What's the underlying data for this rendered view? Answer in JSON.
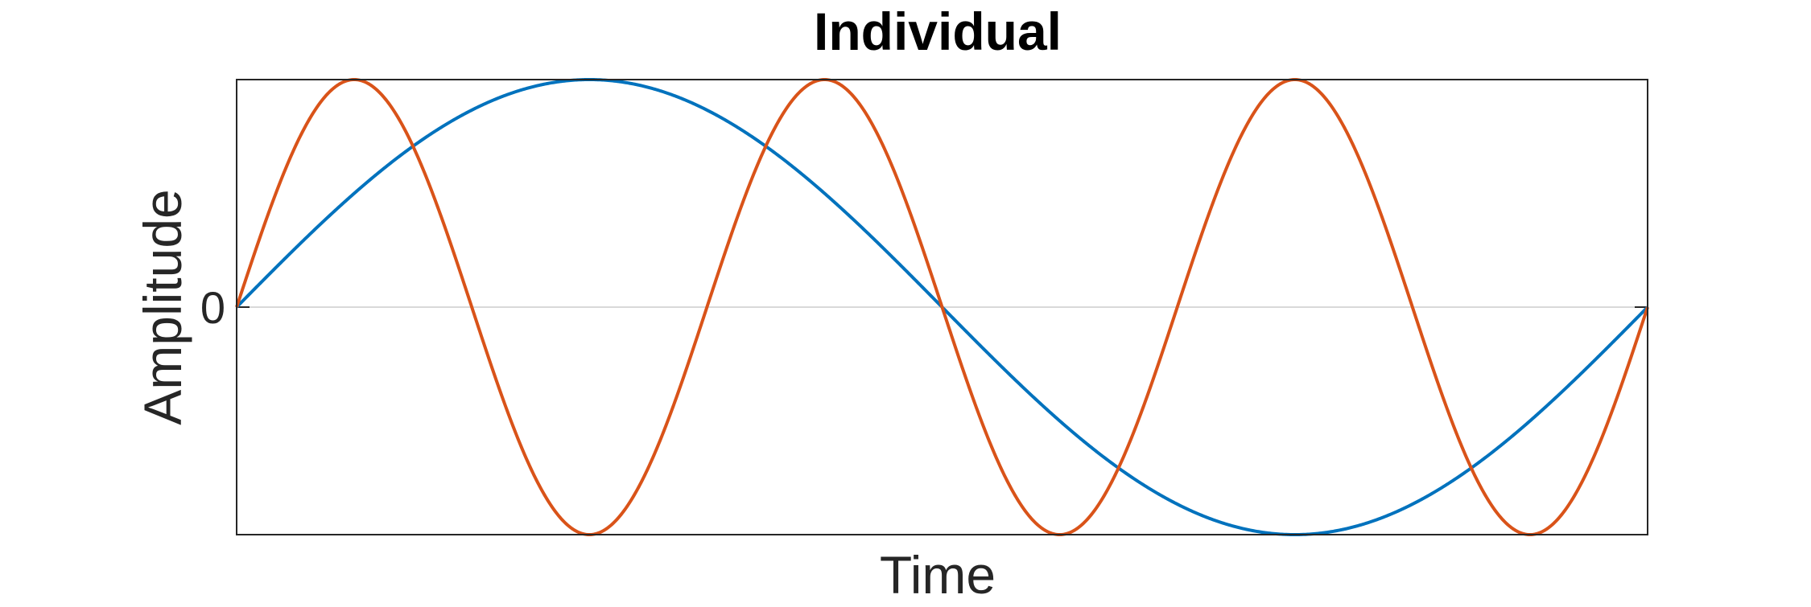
{
  "chart_data": {
    "type": "line",
    "title": "Individual",
    "xlabel": "Time",
    "ylabel": "Amplitude",
    "xlim": [
      0,
      3
    ],
    "ylim": [
      -1,
      1
    ],
    "yticks": [
      0
    ],
    "ytick_labels": [
      "0"
    ],
    "xticks": [],
    "grid": "y-zero-line",
    "legend": "none",
    "series": [
      {
        "function": "sine",
        "frequency_cycles": 1,
        "amplitude": 1,
        "color": "#0072BD"
      },
      {
        "function": "sine",
        "frequency_cycles": 3,
        "amplitude": 1,
        "color": "#D95319"
      }
    ]
  }
}
